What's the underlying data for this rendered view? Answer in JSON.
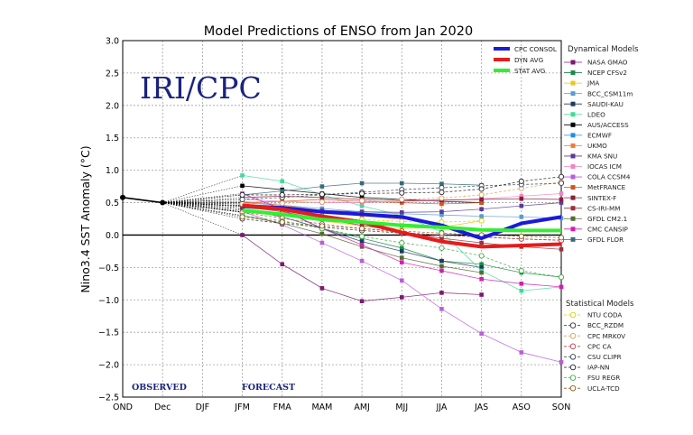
{
  "chart_data": {
    "type": "line",
    "title": "Model Predictions of ENSO from Jan 2020",
    "ylabel": "Nino3.4 SST Anomaly (°C)",
    "xlabel": "",
    "ylim": [
      -2.5,
      3.0
    ],
    "yticks": [
      "3.0",
      "2.5",
      "2.0",
      "1.5",
      "1.0",
      "0.5",
      "0.0",
      "−0.5",
      "−1.0",
      "−1.5",
      "−2.0",
      "−2.5"
    ],
    "categories": [
      "OND",
      "Dec",
      "DJF",
      "JFM",
      "FMA",
      "MAM",
      "AMJ",
      "MJJ",
      "JJA",
      "JAS",
      "ASO",
      "SON"
    ],
    "grid": true,
    "watermark": "IRI/CPC",
    "observed_label": "OBSERVED",
    "forecast_label": "FORECAST",
    "observed": [
      0.58,
      0.5
    ],
    "dynamical_heading": "Dynamical Models",
    "statistical_heading": "Statistical Models",
    "averages": [
      {
        "name": "CPC CONSOL",
        "color": "#1a1adb",
        "values": [
          0.45,
          0.42,
          0.36,
          0.32,
          0.28,
          0.15,
          -0.05,
          0.18,
          0.28
        ]
      },
      {
        "name": "DYN AVG",
        "color": "#e51c1c",
        "values": [
          0.46,
          0.4,
          0.29,
          0.2,
          0.04,
          -0.1,
          -0.18,
          -0.16,
          -0.14
        ]
      },
      {
        "name": "STAT AVG",
        "color": "#33ee33",
        "values": [
          0.38,
          0.32,
          0.24,
          0.2,
          0.15,
          0.12,
          0.08,
          0.07,
          0.07
        ]
      }
    ],
    "dynamical": [
      {
        "name": "NASA GMAO",
        "color": "#7b1a6e",
        "values": [
          0.0,
          -0.45,
          -0.82,
          -1.02,
          -0.96,
          -0.89,
          -0.92
        ]
      },
      {
        "name": "NCEP CFSv2",
        "color": "#1b8a4a",
        "values": [
          0.42,
          0.38,
          0.1,
          -0.05,
          -0.2,
          -0.4,
          -0.45,
          -0.58,
          -0.65
        ]
      },
      {
        "name": "JMA",
        "color": "#e8c619",
        "values": [
          0.36,
          0.3,
          0.22,
          0.14,
          0.1,
          0.12,
          0.22
        ]
      },
      {
        "name": "BCC_CSM11m",
        "color": "#5a9bd5",
        "values": [
          0.5,
          0.46,
          0.41,
          0.36,
          0.33,
          0.31,
          0.29,
          0.28,
          0.26
        ]
      },
      {
        "name": "SAUDI-KAU",
        "color": "#1b3b5a",
        "values": [
          0.4,
          0.28,
          0.1,
          -0.1,
          -0.25,
          -0.4,
          -0.5
        ]
      },
      {
        "name": "LDEO",
        "color": "#3ddc97",
        "values": [
          0.92,
          0.83,
          0.62,
          0.45,
          0.3,
          0.05,
          -0.55,
          -0.86,
          -0.8
        ]
      },
      {
        "name": "AUS/ACCESS",
        "color": "#000000",
        "values": [
          0.76,
          0.7,
          0.64,
          0.58,
          0.55,
          0.52,
          0.5
        ]
      },
      {
        "name": "ECMWF",
        "color": "#1f8fe0",
        "values": [
          0.48,
          0.4,
          0.3,
          0.22,
          0.15
        ]
      },
      {
        "name": "UKMO",
        "color": "#ee7b3a",
        "values": [
          0.52,
          0.46,
          0.38,
          0.3,
          0.24
        ]
      },
      {
        "name": "KMA SNU",
        "color": "#5b3a99",
        "values": [
          0.45,
          0.42,
          0.38,
          0.36,
          0.35,
          0.36,
          0.4,
          0.45,
          0.5
        ]
      },
      {
        "name": "IOCAS ICM",
        "color": "#ee84c4",
        "values": [
          0.55,
          0.52,
          0.5,
          0.5,
          0.52,
          0.53,
          0.56,
          0.6,
          0.64
        ]
      },
      {
        "name": "COLA CCSM4",
        "color": "#b75ed8",
        "values": [
          0.36,
          0.16,
          -0.12,
          -0.4,
          -0.7,
          -1.14,
          -1.52,
          -1.81,
          -1.96
        ]
      },
      {
        "name": "MetFRANCE",
        "color": "#d2541e",
        "values": [
          0.5,
          0.52,
          0.55,
          0.52,
          0.5,
          0.48,
          0.5
        ]
      },
      {
        "name": "SINTEX-F",
        "color": "#8b1c38",
        "values": [
          0.58,
          0.6,
          0.58,
          0.55,
          0.53,
          0.54,
          0.55,
          0.56,
          0.55
        ]
      },
      {
        "name": "CS-IRI-MM",
        "color": "#a0303a",
        "values": [
          0.44,
          0.36,
          0.25,
          0.15,
          0.05,
          -0.05,
          -0.12,
          -0.18,
          -0.22
        ]
      },
      {
        "name": "GFDL CM2.1",
        "color": "#556b2f",
        "values": [
          0.3,
          0.18,
          0.02,
          -0.18,
          -0.35,
          -0.48,
          -0.58
        ]
      },
      {
        "name": "CMC CANSIP",
        "color": "#d020b0",
        "values": [
          0.64,
          0.4,
          0.1,
          -0.15,
          -0.42,
          -0.55,
          -0.68,
          -0.75,
          -0.8
        ]
      },
      {
        "name": "GFDL FLOR",
        "color": "#3a6a7a",
        "values": [
          0.62,
          0.68,
          0.75,
          0.8,
          0.8,
          0.79,
          0.77
        ]
      }
    ],
    "statistical": [
      {
        "name": "NTU CODA",
        "color": "#d4d400",
        "values": [
          0.35,
          0.32,
          0.28,
          0.24,
          0.21,
          0.2,
          0.22
        ]
      },
      {
        "name": "BCC_RZDM",
        "color": "#333333",
        "values": [
          0.25,
          0.18,
          0.12,
          0.07,
          0.03,
          0.0,
          -0.03,
          -0.06,
          -0.08
        ]
      },
      {
        "name": "CPC MRK0V",
        "color": "#d9a060",
        "values": [
          0.48,
          0.49,
          0.51,
          0.53,
          0.55,
          0.57,
          0.62,
          0.72,
          0.82
        ]
      },
      {
        "name": "CPC CA",
        "color": "#c04050",
        "values": [
          0.35,
          0.26,
          0.17,
          0.1,
          0.04,
          0.0,
          -0.03,
          -0.06,
          -0.08
        ]
      },
      {
        "name": "CSU CLIPR",
        "color": "#304050",
        "values": [
          0.55,
          0.58,
          0.62,
          0.66,
          0.7,
          0.73,
          0.76,
          0.78,
          0.8
        ]
      },
      {
        "name": "IAP-NN",
        "color": "#222222",
        "values": [
          0.62,
          0.62,
          0.63,
          0.64,
          0.65,
          0.66,
          0.71,
          0.83,
          0.9
        ]
      },
      {
        "name": "FSU REGR",
        "color": "#44aa44",
        "values": [
          0.3,
          0.22,
          0.1,
          -0.02,
          -0.12,
          -0.2,
          -0.32,
          -0.55,
          -0.65
        ]
      },
      {
        "name": "UCLA-TCD",
        "color": "#8a5a1a",
        "values": [
          0.28,
          0.2,
          0.14,
          0.1,
          0.06,
          0.03,
          0.0,
          -0.02,
          -0.04
        ]
      }
    ]
  }
}
